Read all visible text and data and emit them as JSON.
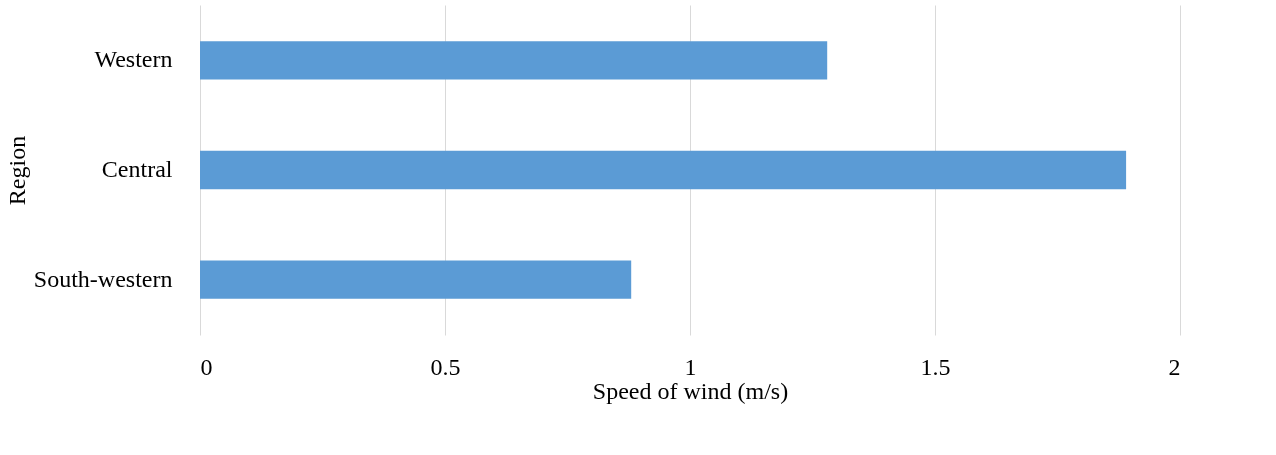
{
  "chart_data": {
    "type": "bar",
    "orientation": "horizontal",
    "xlabel": "Speed of wind (m/s)",
    "ylabel": "Region",
    "categories": [
      "Western",
      "Central",
      "South-western"
    ],
    "values": [
      1.28,
      1.89,
      0.88
    ],
    "color": "#5b9bd5",
    "xlim": [
      0,
      2
    ],
    "xticks": [
      0,
      0.5,
      1,
      1.5,
      2
    ],
    "grid": "x"
  }
}
